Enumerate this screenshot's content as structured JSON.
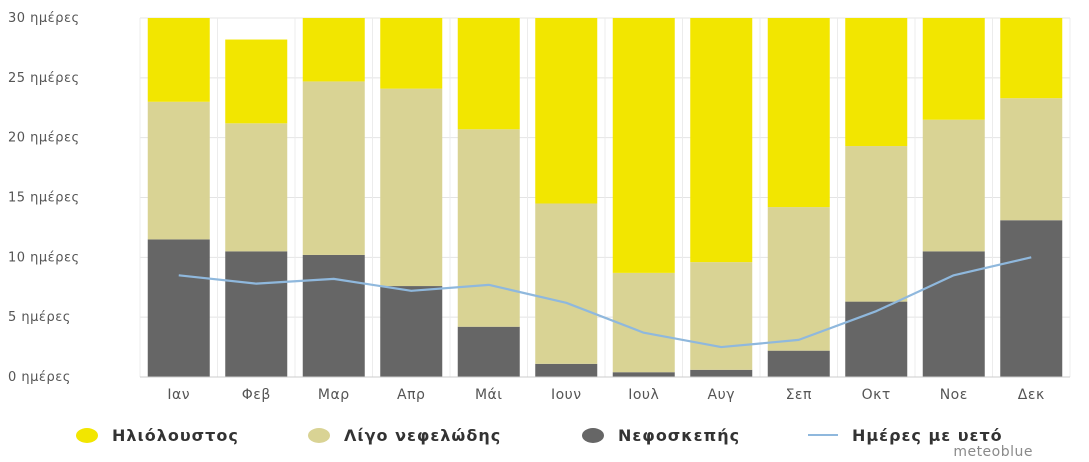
{
  "chart_data": {
    "type": "bar",
    "stacked": true,
    "categories": [
      "Ιαν",
      "Φεβ",
      "Μαρ",
      "Απρ",
      "Μάι",
      "Ιουν",
      "Ιουλ",
      "Αυγ",
      "Σεπ",
      "Οκτ",
      "Νοε",
      "Δεκ"
    ],
    "y_ticks": [
      "0 ημέρες",
      "5 ημέρες",
      "10 ημέρες",
      "15 ημέρες",
      "20 ημέρες",
      "25 ημέρες",
      "30 ημέρες"
    ],
    "ylim": [
      0,
      30
    ],
    "grid": true,
    "series": [
      {
        "name": "Νεφοσκεπής",
        "kind": "bar",
        "color": "#666666",
        "values": [
          11.5,
          10.5,
          10.2,
          7.6,
          4.2,
          1.1,
          0.4,
          0.6,
          2.2,
          6.3,
          10.5,
          13.1
        ]
      },
      {
        "name": "Λίγο νεφελώδης",
        "kind": "bar",
        "color": "#d9d394",
        "values": [
          11.5,
          10.7,
          14.5,
          16.5,
          16.5,
          13.4,
          8.3,
          9.0,
          12.0,
          13.0,
          11.0,
          10.2
        ]
      },
      {
        "name": "Ηλιόλουστος",
        "kind": "bar",
        "color": "#f2e600",
        "values": [
          7.0,
          7.0,
          5.3,
          5.9,
          9.3,
          15.5,
          21.3,
          20.4,
          15.8,
          10.7,
          8.5,
          6.7
        ]
      },
      {
        "name": "Ημέρες με υετό",
        "kind": "line",
        "color": "#8fb8dd",
        "values": [
          8.5,
          7.8,
          8.2,
          7.2,
          7.7,
          6.2,
          3.7,
          2.5,
          3.1,
          5.5,
          8.5,
          10.0
        ]
      }
    ],
    "legend_position": "bottom",
    "legend": [
      {
        "label": "Ηλιόλουστος",
        "series": "Ηλιόλουστος"
      },
      {
        "label": "Λίγο νεφελώδης",
        "series": "Λίγο νεφελώδης"
      },
      {
        "label": "Νεφοσκεπής",
        "series": "Νεφοσκεπής"
      },
      {
        "label": "Ημέρες με υετό",
        "series": "Ημέρες με υετό"
      }
    ],
    "credit": "meteoblue"
  }
}
